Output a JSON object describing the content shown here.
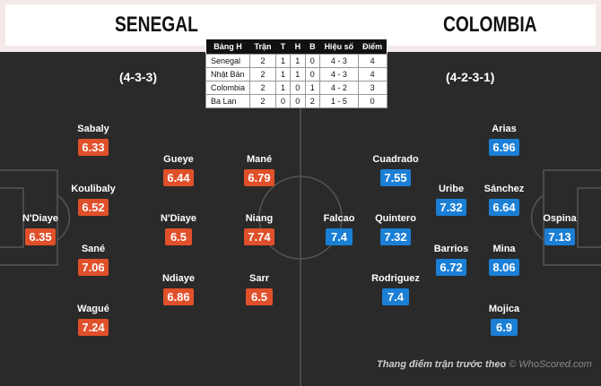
{
  "home": {
    "name": "SENEGAL",
    "formation": "(4-3-3)",
    "color": "#e0502a"
  },
  "away": {
    "name": "COLOMBIA",
    "formation": "(4-2-3-1)",
    "color": "#1b7fd6"
  },
  "table": {
    "headers": [
      "Bảng H",
      "Trận",
      "T",
      "H",
      "B",
      "Hiệu số",
      "Điểm"
    ],
    "rows": [
      [
        "Senegal",
        "2",
        "1",
        "1",
        "0",
        "4 - 3",
        "4"
      ],
      [
        "Nhật Bản",
        "2",
        "1",
        "1",
        "0",
        "4 - 3",
        "4"
      ],
      [
        "Colombia",
        "2",
        "1",
        "0",
        "1",
        "4 - 2",
        "3"
      ],
      [
        "Ba Lan",
        "2",
        "0",
        "0",
        "2",
        "1 - 5",
        "0"
      ]
    ]
  },
  "home_players": [
    {
      "name": "Sabaly",
      "rating": "6.33"
    },
    {
      "name": "Koulibaly",
      "rating": "6.52"
    },
    {
      "name": "N'Diaye",
      "rating": "6.35"
    },
    {
      "name": "Sané",
      "rating": "7.06"
    },
    {
      "name": "Wagué",
      "rating": "7.24"
    },
    {
      "name": "Gueye",
      "rating": "6.44"
    },
    {
      "name": "N'Diaye",
      "rating": "6.5"
    },
    {
      "name": "Ndiaye",
      "rating": "6.86"
    },
    {
      "name": "Mané",
      "rating": "6.79"
    },
    {
      "name": "Niang",
      "rating": "7.74"
    },
    {
      "name": "Sarr",
      "rating": "6.5"
    }
  ],
  "away_players": [
    {
      "name": "Arias",
      "rating": "6.96"
    },
    {
      "name": "Cuadrado",
      "rating": "7.55"
    },
    {
      "name": "Uribe",
      "rating": "7.32"
    },
    {
      "name": "Sánchez",
      "rating": "6.64"
    },
    {
      "name": "Falcao",
      "rating": "7.4"
    },
    {
      "name": "Quintero",
      "rating": "7.32"
    },
    {
      "name": "Ospina",
      "rating": "7.13"
    },
    {
      "name": "Barrios",
      "rating": "6.72"
    },
    {
      "name": "Mina",
      "rating": "8.06"
    },
    {
      "name": "Rodriguez",
      "rating": "7.4"
    },
    {
      "name": "Mojica",
      "rating": "6.9"
    }
  ],
  "footer": {
    "caption": "Thang điểm trận trước theo",
    "source": "© WhoScored.com"
  }
}
